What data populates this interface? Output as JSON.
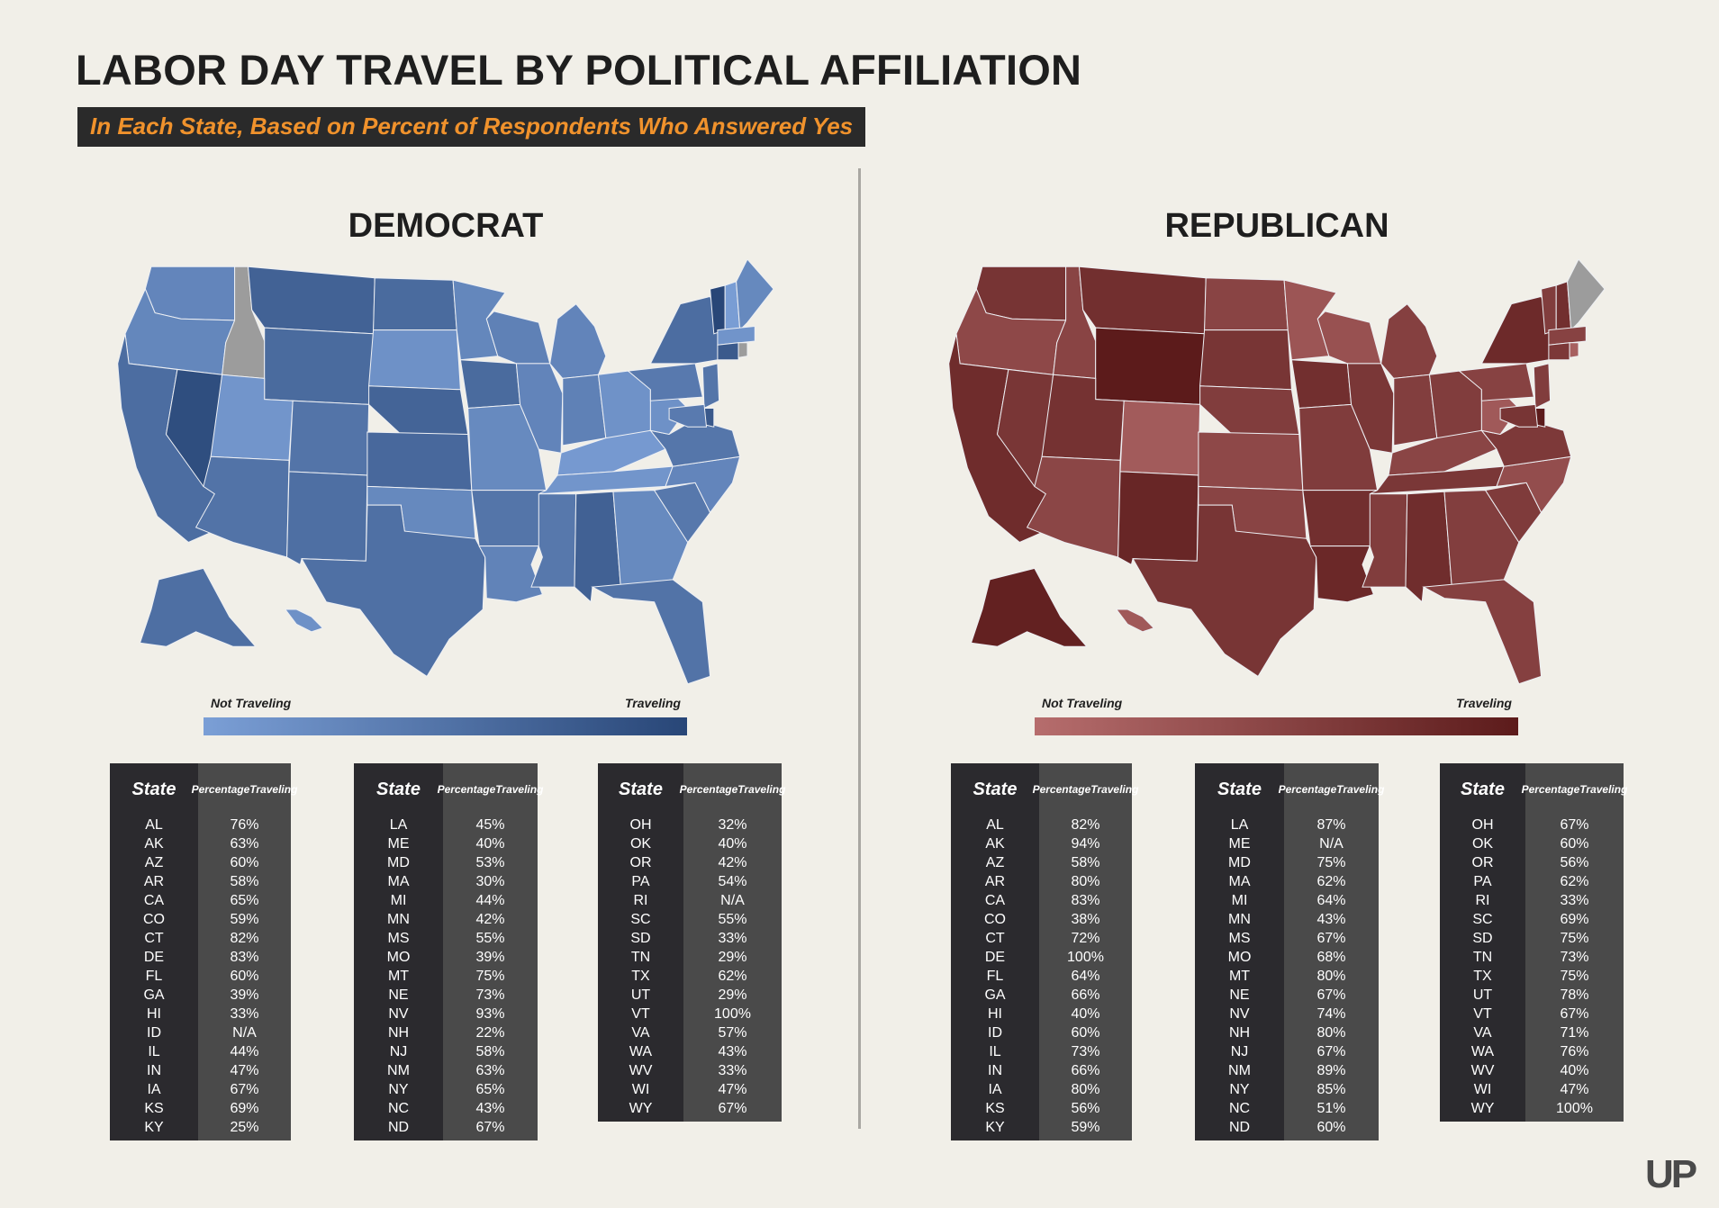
{
  "title": "LABOR DAY TRAVEL BY POLITICAL AFFILIATION",
  "subtitle": "In Each State, Based on Percent of Respondents Who Answered Yes",
  "logo": "UP",
  "legend": {
    "low": "Not Traveling",
    "high": "Traveling"
  },
  "table_headers": {
    "state": "State",
    "pct_line1": "Percentage",
    "pct_line2": "Traveling"
  },
  "colors": {
    "dem_low": "#7b9fd6",
    "dem_mid": "#4a68a3",
    "dem_high": "#284677",
    "rep_low": "#b66d6d",
    "rep_mid": "#8f3f3f",
    "rep_high": "#5c1b1b",
    "na": "#9c9c9c"
  },
  "panels": [
    {
      "title": "DEMOCRAT",
      "tables": [
        [
          [
            "AL",
            "76%"
          ],
          [
            "AK",
            "63%"
          ],
          [
            "AZ",
            "60%"
          ],
          [
            "AR",
            "58%"
          ],
          [
            "CA",
            "65%"
          ],
          [
            "CO",
            "59%"
          ],
          [
            "CT",
            "82%"
          ],
          [
            "DE",
            "83%"
          ],
          [
            "FL",
            "60%"
          ],
          [
            "GA",
            "39%"
          ],
          [
            "HI",
            "33%"
          ],
          [
            "ID",
            "N/A"
          ],
          [
            "IL",
            "44%"
          ],
          [
            "IN",
            "47%"
          ],
          [
            "IA",
            "67%"
          ],
          [
            "KS",
            "69%"
          ],
          [
            "KY",
            "25%"
          ]
        ],
        [
          [
            "LA",
            "45%"
          ],
          [
            "ME",
            "40%"
          ],
          [
            "MD",
            "53%"
          ],
          [
            "MA",
            "30%"
          ],
          [
            "MI",
            "44%"
          ],
          [
            "MN",
            "42%"
          ],
          [
            "MS",
            "55%"
          ],
          [
            "MO",
            "39%"
          ],
          [
            "MT",
            "75%"
          ],
          [
            "NE",
            "73%"
          ],
          [
            "NV",
            "93%"
          ],
          [
            "NH",
            "22%"
          ],
          [
            "NJ",
            "58%"
          ],
          [
            "NM",
            "63%"
          ],
          [
            "NY",
            "65%"
          ],
          [
            "NC",
            "43%"
          ],
          [
            "ND",
            "67%"
          ]
        ],
        [
          [
            "OH",
            "32%"
          ],
          [
            "OK",
            "40%"
          ],
          [
            "OR",
            "42%"
          ],
          [
            "PA",
            "54%"
          ],
          [
            "RI",
            "N/A"
          ],
          [
            "SC",
            "55%"
          ],
          [
            "SD",
            "33%"
          ],
          [
            "TN",
            "29%"
          ],
          [
            "TX",
            "62%"
          ],
          [
            "UT",
            "29%"
          ],
          [
            "VT",
            "100%"
          ],
          [
            "VA",
            "57%"
          ],
          [
            "WA",
            "43%"
          ],
          [
            "WV",
            "33%"
          ],
          [
            "WI",
            "47%"
          ],
          [
            "WY",
            "67%"
          ]
        ]
      ]
    },
    {
      "title": "REPUBLICAN",
      "tables": [
        [
          [
            "AL",
            "82%"
          ],
          [
            "AK",
            "94%"
          ],
          [
            "AZ",
            "58%"
          ],
          [
            "AR",
            "80%"
          ],
          [
            "CA",
            "83%"
          ],
          [
            "CO",
            "38%"
          ],
          [
            "CT",
            "72%"
          ],
          [
            "DE",
            "100%"
          ],
          [
            "FL",
            "64%"
          ],
          [
            "GA",
            "66%"
          ],
          [
            "HI",
            "40%"
          ],
          [
            "ID",
            "60%"
          ],
          [
            "IL",
            "73%"
          ],
          [
            "IN",
            "66%"
          ],
          [
            "IA",
            "80%"
          ],
          [
            "KS",
            "56%"
          ],
          [
            "KY",
            "59%"
          ]
        ],
        [
          [
            "LA",
            "87%"
          ],
          [
            "ME",
            "N/A"
          ],
          [
            "MD",
            "75%"
          ],
          [
            "MA",
            "62%"
          ],
          [
            "MI",
            "64%"
          ],
          [
            "MN",
            "43%"
          ],
          [
            "MS",
            "67%"
          ],
          [
            "MO",
            "68%"
          ],
          [
            "MT",
            "80%"
          ],
          [
            "NE",
            "67%"
          ],
          [
            "NV",
            "74%"
          ],
          [
            "NH",
            "80%"
          ],
          [
            "NJ",
            "67%"
          ],
          [
            "NM",
            "89%"
          ],
          [
            "NY",
            "85%"
          ],
          [
            "NC",
            "51%"
          ],
          [
            "ND",
            "60%"
          ]
        ],
        [
          [
            "OH",
            "67%"
          ],
          [
            "OK",
            "60%"
          ],
          [
            "OR",
            "56%"
          ],
          [
            "PA",
            "62%"
          ],
          [
            "RI",
            "33%"
          ],
          [
            "SC",
            "69%"
          ],
          [
            "SD",
            "75%"
          ],
          [
            "TN",
            "73%"
          ],
          [
            "TX",
            "75%"
          ],
          [
            "UT",
            "78%"
          ],
          [
            "VT",
            "67%"
          ],
          [
            "VA",
            "71%"
          ],
          [
            "WA",
            "76%"
          ],
          [
            "WV",
            "40%"
          ],
          [
            "WI",
            "47%"
          ],
          [
            "WY",
            "100%"
          ]
        ]
      ]
    }
  ]
}
